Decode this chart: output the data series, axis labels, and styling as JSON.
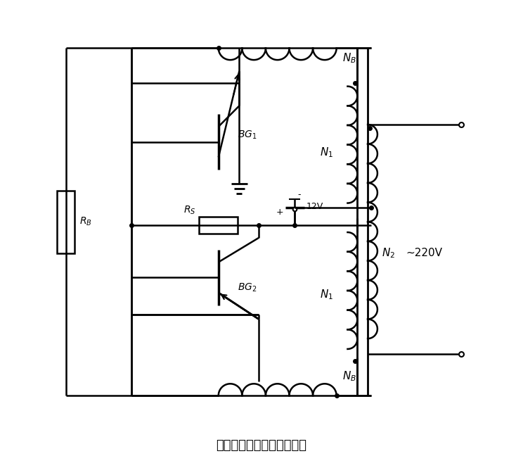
{
  "title": "实用的晶体管逆变电源电路",
  "title_fontsize": 13,
  "bg_color": "#ffffff",
  "figsize": [
    7.44,
    6.65
  ],
  "dpi": 100
}
